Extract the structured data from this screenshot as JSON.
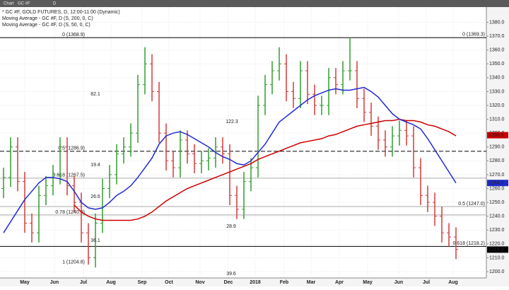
{
  "chart_data": {
    "type": "ohlc",
    "toolbar": [
      "Chart",
      "GC #F",
      "D"
    ],
    "legend": [
      {
        "name": "* GC #F, GOLD FUTURES, D, 12:00-11:00 (Dynamic)",
        "color": "#000000"
      },
      {
        "name": "Moving Average - GC #F, D (S, 200, 0, C)",
        "color": "#cc0000"
      },
      {
        "name": "Moving Average - GC #F, D (S, 50, 0, C)",
        "color": "#1f2bd0"
      }
    ],
    "up_color": "#2f9e2f",
    "down_color": "#d23a3a",
    "ylim": [
      1195.4,
      1391
    ],
    "yticks": [
      {
        "value": 1200,
        "label": "1200.0"
      },
      {
        "value": 1210,
        "label": "1210.0"
      },
      {
        "value": 1220,
        "label": "1220.0"
      },
      {
        "value": 1230,
        "label": "1230.0"
      },
      {
        "value": 1240,
        "label": "1240.0"
      },
      {
        "value": 1250,
        "label": "1250.0"
      },
      {
        "value": 1260,
        "label": "1260.0"
      },
      {
        "value": 1270,
        "label": "1270.0"
      },
      {
        "value": 1280,
        "label": "1280.0"
      },
      {
        "value": 1290,
        "label": "1290.0"
      },
      {
        "value": 1300,
        "label": "1300.0"
      },
      {
        "value": 1310,
        "label": "1310.0"
      },
      {
        "value": 1320,
        "label": "1320.0"
      },
      {
        "value": 1330,
        "label": "1330.0"
      },
      {
        "value": 1340,
        "label": "1340.0"
      },
      {
        "value": 1350,
        "label": "1350.0"
      },
      {
        "value": 1360,
        "label": "1360.0"
      },
      {
        "value": 1370,
        "label": "1370.0"
      },
      {
        "value": 1380,
        "label": "1380.0"
      }
    ],
    "xticks": [
      {
        "value": 3,
        "label": "May"
      },
      {
        "value": 7.2,
        "label": "Jun"
      },
      {
        "value": 11.3,
        "label": "Jul"
      },
      {
        "value": 15.2,
        "label": "Aug"
      },
      {
        "value": 19.6,
        "label": "Sep"
      },
      {
        "value": 23.4,
        "label": "Oct"
      },
      {
        "value": 27.8,
        "label": "Nov"
      },
      {
        "value": 31.8,
        "label": "Dec"
      },
      {
        "value": 35.6,
        "label": "2018"
      },
      {
        "value": 39.7,
        "label": "Feb"
      },
      {
        "value": 43.5,
        "label": "Mar"
      },
      {
        "value": 47.5,
        "label": "Apr"
      },
      {
        "value": 51.5,
        "label": "May"
      },
      {
        "value": 55.9,
        "label": "Jun"
      },
      {
        "value": 59.8,
        "label": "Jul"
      },
      {
        "value": 63.6,
        "label": "Aug"
      }
    ],
    "grid": true,
    "ohlc": {
      "open": [
        1260,
        1268,
        1290,
        1265,
        1235,
        1228,
        1255,
        1262,
        1270,
        1290,
        1262,
        1250,
        1228,
        1210,
        1235,
        1260,
        1270,
        1285,
        1290,
        1300,
        1335,
        1350,
        1330,
        1300,
        1280,
        1275,
        1295,
        1285,
        1278,
        1280,
        1282,
        1290,
        1285,
        1255,
        1245,
        1265,
        1275,
        1320,
        1335,
        1345,
        1350,
        1330,
        1325,
        1345,
        1328,
        1320,
        1320,
        1340,
        1335,
        1345,
        1345,
        1325,
        1315,
        1305,
        1295,
        1290,
        1298,
        1302,
        1298,
        1275,
        1255,
        1250,
        1240,
        1228,
        1225
      ],
      "high": [
        1275,
        1297,
        1297,
        1272,
        1242,
        1262,
        1269,
        1277,
        1297,
        1297,
        1269,
        1257,
        1235,
        1242,
        1267,
        1277,
        1292,
        1297,
        1307,
        1342,
        1362,
        1357,
        1337,
        1307,
        1287,
        1302,
        1302,
        1292,
        1287,
        1289,
        1297,
        1297,
        1292,
        1262,
        1272,
        1282,
        1327,
        1342,
        1352,
        1362,
        1357,
        1337,
        1352,
        1352,
        1335,
        1327,
        1347,
        1347,
        1352,
        1369,
        1352,
        1332,
        1322,
        1312,
        1302,
        1305,
        1309,
        1309,
        1305,
        1282,
        1262,
        1257,
        1247,
        1235,
        1232
      ],
      "low": [
        1253,
        1261,
        1258,
        1228,
        1221,
        1221,
        1248,
        1255,
        1263,
        1255,
        1243,
        1221,
        1205,
        1203,
        1228,
        1253,
        1263,
        1278,
        1283,
        1293,
        1328,
        1323,
        1293,
        1273,
        1268,
        1268,
        1278,
        1271,
        1271,
        1273,
        1275,
        1278,
        1248,
        1238,
        1238,
        1258,
        1268,
        1313,
        1328,
        1338,
        1323,
        1318,
        1318,
        1321,
        1313,
        1313,
        1313,
        1328,
        1328,
        1338,
        1318,
        1308,
        1298,
        1288,
        1283,
        1283,
        1291,
        1291,
        1268,
        1248,
        1243,
        1233,
        1221,
        1218,
        1209
      ],
      "close": [
        1268,
        1290,
        1265,
        1235,
        1228,
        1255,
        1262,
        1270,
        1290,
        1262,
        1250,
        1228,
        1210,
        1235,
        1260,
        1270,
        1285,
        1290,
        1300,
        1335,
        1350,
        1330,
        1300,
        1280,
        1275,
        1295,
        1285,
        1278,
        1280,
        1282,
        1290,
        1285,
        1255,
        1245,
        1265,
        1275,
        1320,
        1335,
        1345,
        1350,
        1330,
        1325,
        1345,
        1328,
        1320,
        1320,
        1340,
        1335,
        1345,
        1345,
        1325,
        1315,
        1305,
        1295,
        1290,
        1298,
        1302,
        1298,
        1275,
        1255,
        1250,
        1240,
        1228,
        1225,
        1216
      ]
    },
    "series": [
      {
        "name": "Moving Average - GC #F, D (S, 200, 0, C)",
        "color": "#cc0000",
        "values": [
          null,
          null,
          null,
          null,
          null,
          null,
          null,
          null,
          null,
          null,
          1248,
          1243,
          1240,
          1238,
          1237,
          1237,
          1237,
          1237,
          1237,
          1238,
          1240,
          1243,
          1247,
          1251,
          1254,
          1257,
          1260,
          1262,
          1264,
          1266,
          1268,
          1270,
          1272,
          1274,
          1276,
          1278,
          1281,
          1283,
          1285,
          1287,
          1289,
          1291,
          1293,
          1294,
          1295,
          1296,
          1298,
          1299,
          1301,
          1303,
          1305,
          1306,
          1307,
          1308,
          1309,
          1309,
          1310,
          1309,
          1309,
          1308,
          1306,
          1305,
          1303,
          1301,
          1298
        ]
      },
      {
        "name": "Moving Average - GC #F, D (S, 50, 0, C)",
        "color": "#1f2bd0",
        "values": [
          1228,
          1236,
          1244,
          1252,
          1258,
          1264,
          1268,
          1268,
          1267,
          1265,
          1258,
          1250,
          1246,
          1245,
          1246,
          1250,
          1255,
          1258,
          1262,
          1268,
          1275,
          1282,
          1292,
          1298,
          1300,
          1301,
          1299,
          1296,
          1293,
          1290,
          1286,
          1283,
          1281,
          1278,
          1277,
          1280,
          1286,
          1292,
          1300,
          1308,
          1312,
          1316,
          1320,
          1324,
          1327,
          1329,
          1331,
          1332,
          1331,
          1331,
          1332,
          1333,
          1330,
          1326,
          1320,
          1314,
          1310,
          1308,
          1306,
          1303,
          1296,
          1288,
          1280,
          1272,
          1264
        ]
      }
    ],
    "fib_levels": [
      {
        "label": "0 (1368.9)",
        "value": 1368.9,
        "style": "solid",
        "side": "left"
      },
      {
        "label": "0 (1369.3)",
        "value": 1369.3,
        "style": "none",
        "side": "right"
      },
      {
        "label": "0.5 (1286.9)",
        "value": 1286.9,
        "style": "dashed",
        "side": "left"
      },
      {
        "label": "0.618 (1267.5)",
        "value": 1267.5,
        "style": "gray",
        "side": "left"
      },
      {
        "label": "0.78 (1240.9)",
        "value": 1240.9,
        "style": "gray",
        "side": "left"
      },
      {
        "label": "1 (1204.8)",
        "value": 1204.8,
        "style": "none",
        "side": "left"
      },
      {
        "label": "0.5 (1247.0)",
        "value": 1247,
        "style": "gray",
        "side": "right"
      },
      {
        "label": "0.618 (1218.2)",
        "value": 1218.2,
        "style": "solid",
        "side": "right"
      }
    ],
    "annotations": [
      "82.1",
      "122.3",
      "19.4",
      "26.6",
      "28.9",
      "36.1",
      "39.6"
    ],
    "price_labels": [
      {
        "label": "1298.5",
        "value": 1298.5,
        "color": "#cc0000"
      },
      {
        "label": "1264.0",
        "value": 1264,
        "color": "#1f2bd0"
      },
      {
        "label": "1215.9",
        "value": 1215.9,
        "color": "#000000"
      }
    ]
  }
}
